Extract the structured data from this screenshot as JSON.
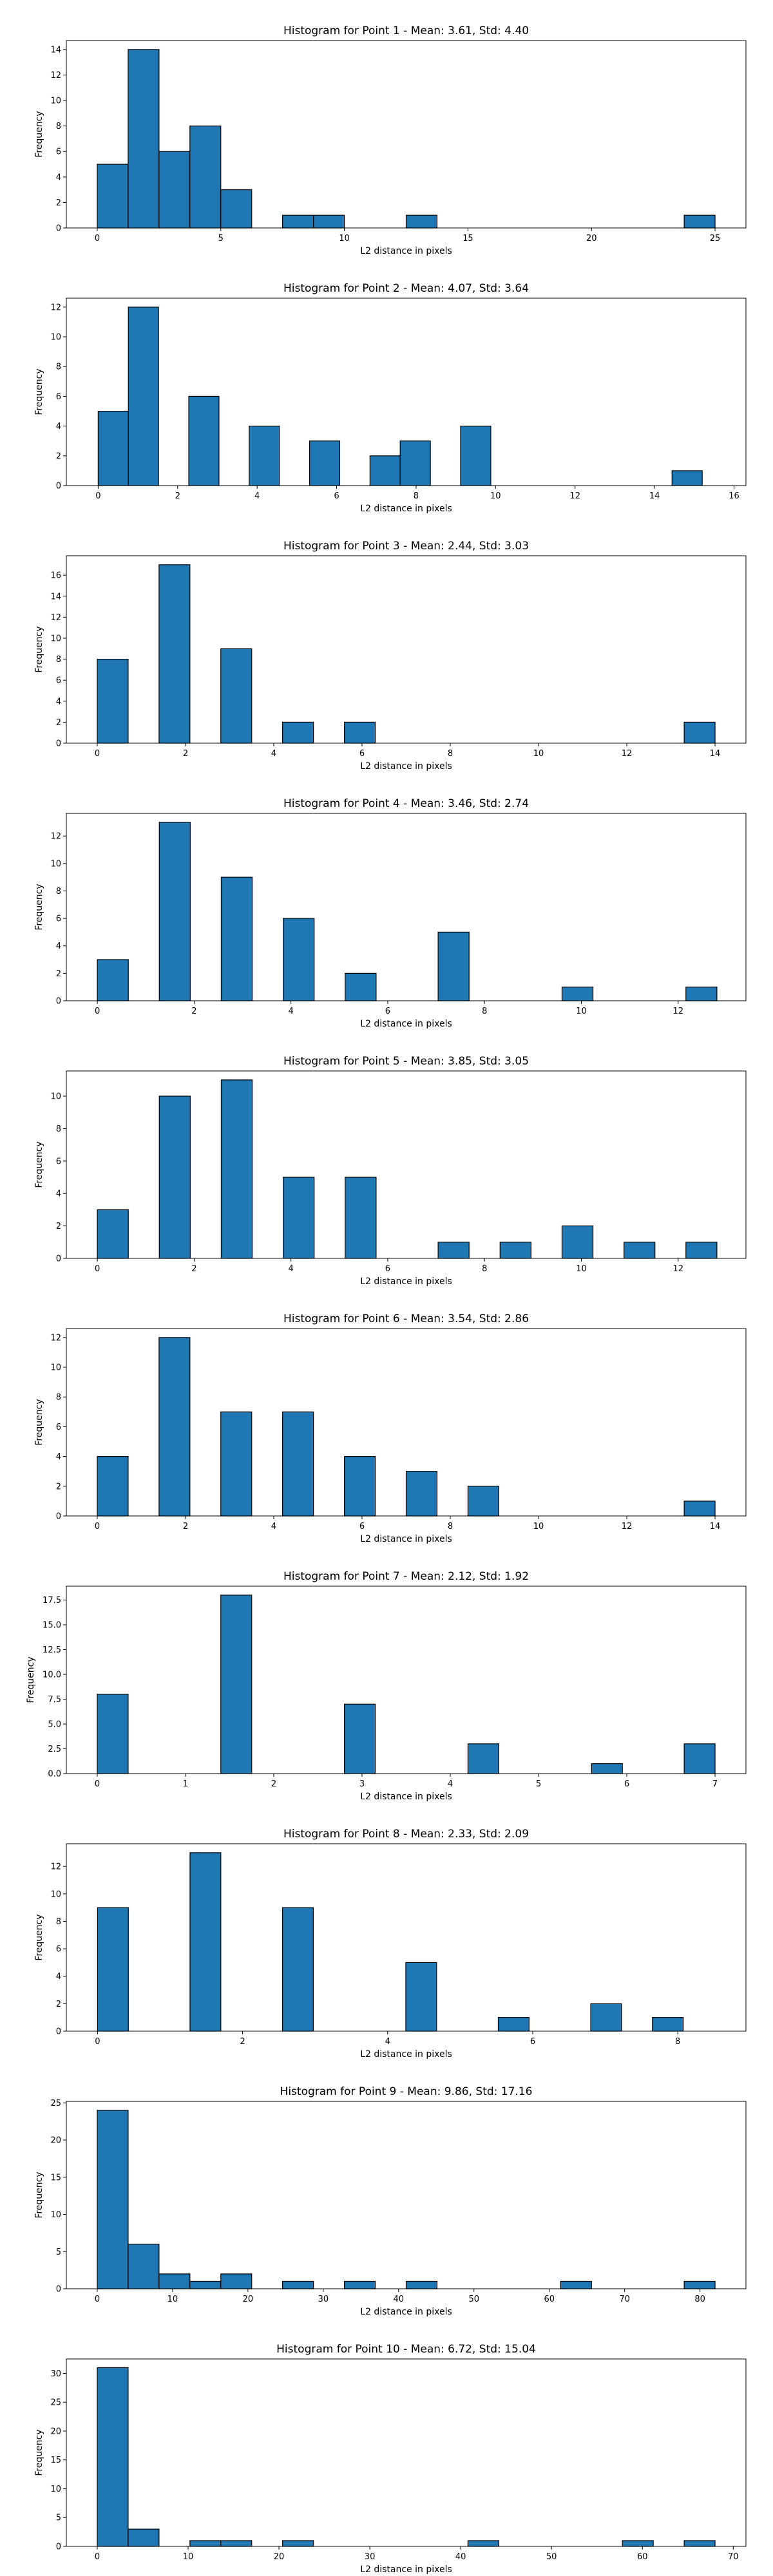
{
  "style": {
    "bar_color": "#1f77b4",
    "edge_color": "#000000"
  },
  "chart_data": [
    {
      "type": "bar",
      "title": "Histogram for Point 1 - Mean: 3.61, Std: 4.40",
      "xlabel": "L2 distance in pixels",
      "ylabel": "Frequency",
      "xlim": [
        -1.25,
        26.25
      ],
      "ylim": [
        0,
        14.7
      ],
      "xticks": [
        0,
        5,
        10,
        15,
        20,
        25
      ],
      "yticks": [
        0,
        2,
        4,
        6,
        8,
        10,
        12,
        14
      ],
      "bars": [
        {
          "x0": 0.0,
          "x1": 1.25,
          "value": 5
        },
        {
          "x0": 1.25,
          "x1": 2.5,
          "value": 14
        },
        {
          "x0": 2.5,
          "x1": 3.75,
          "value": 6
        },
        {
          "x0": 3.75,
          "x1": 5.0,
          "value": 8
        },
        {
          "x0": 5.0,
          "x1": 6.25,
          "value": 3
        },
        {
          "x0": 7.5,
          "x1": 8.75,
          "value": 1
        },
        {
          "x0": 8.75,
          "x1": 10.0,
          "value": 1
        },
        {
          "x0": 12.5,
          "x1": 13.75,
          "value": 1
        },
        {
          "x0": 23.75,
          "x1": 25.0,
          "value": 1
        }
      ]
    },
    {
      "type": "bar",
      "title": "Histogram for Point 2 - Mean: 4.07, Std: 3.64",
      "xlabel": "L2 distance in pixels",
      "ylabel": "Frequency",
      "xlim": [
        -0.8,
        16.3
      ],
      "ylim": [
        0,
        12.6
      ],
      "xticks": [
        0,
        2,
        4,
        6,
        8,
        10,
        12,
        14,
        16
      ],
      "yticks": [
        0,
        2,
        4,
        6,
        8,
        10,
        12
      ],
      "bars": [
        {
          "x0": 0.0,
          "x1": 0.76,
          "value": 5
        },
        {
          "x0": 0.76,
          "x1": 1.52,
          "value": 12
        },
        {
          "x0": 2.28,
          "x1": 3.04,
          "value": 6
        },
        {
          "x0": 3.8,
          "x1": 4.56,
          "value": 4
        },
        {
          "x0": 5.32,
          "x1": 6.08,
          "value": 3
        },
        {
          "x0": 6.84,
          "x1": 7.6,
          "value": 2
        },
        {
          "x0": 7.6,
          "x1": 8.36,
          "value": 3
        },
        {
          "x0": 9.12,
          "x1": 9.88,
          "value": 4
        },
        {
          "x0": 14.44,
          "x1": 15.2,
          "value": 1
        }
      ]
    },
    {
      "type": "bar",
      "title": "Histogram for Point 3 - Mean: 2.44, Std: 3.03",
      "xlabel": "L2 distance in pixels",
      "ylabel": "Frequency",
      "xlim": [
        -0.7,
        14.7
      ],
      "ylim": [
        0,
        17.85
      ],
      "xticks": [
        0,
        2,
        4,
        6,
        8,
        10,
        12,
        14
      ],
      "yticks": [
        0,
        2,
        4,
        6,
        8,
        10,
        12,
        14,
        16
      ],
      "bars": [
        {
          "x0": 0.0,
          "x1": 0.7,
          "value": 8
        },
        {
          "x0": 1.4,
          "x1": 2.1,
          "value": 17
        },
        {
          "x0": 2.8,
          "x1": 3.5,
          "value": 9
        },
        {
          "x0": 4.2,
          "x1": 4.9,
          "value": 2
        },
        {
          "x0": 5.6,
          "x1": 6.3,
          "value": 2
        },
        {
          "x0": 13.3,
          "x1": 14.0,
          "value": 2
        }
      ]
    },
    {
      "type": "bar",
      "title": "Histogram for Point 4 - Mean: 3.46, Std: 2.74",
      "xlabel": "L2 distance in pixels",
      "ylabel": "Frequency",
      "xlim": [
        -0.64,
        13.4
      ],
      "ylim": [
        0,
        13.65
      ],
      "xticks": [
        0,
        2,
        4,
        6,
        8,
        10,
        12
      ],
      "yticks": [
        0,
        2,
        4,
        6,
        8,
        10,
        12
      ],
      "bars": [
        {
          "x0": 0.0,
          "x1": 0.64,
          "value": 3
        },
        {
          "x0": 1.28,
          "x1": 1.92,
          "value": 13
        },
        {
          "x0": 2.56,
          "x1": 3.2,
          "value": 9
        },
        {
          "x0": 3.84,
          "x1": 4.48,
          "value": 6
        },
        {
          "x0": 5.12,
          "x1": 5.76,
          "value": 2
        },
        {
          "x0": 7.04,
          "x1": 7.68,
          "value": 5
        },
        {
          "x0": 9.6,
          "x1": 10.24,
          "value": 1
        },
        {
          "x0": 12.16,
          "x1": 12.8,
          "value": 1
        }
      ]
    },
    {
      "type": "bar",
      "title": "Histogram for Point 5 - Mean: 3.85, Std: 3.05",
      "xlabel": "L2 distance in pixels",
      "ylabel": "Frequency",
      "xlim": [
        -0.64,
        13.4
      ],
      "ylim": [
        0,
        11.55
      ],
      "xticks": [
        0,
        2,
        4,
        6,
        8,
        10,
        12
      ],
      "yticks": [
        0,
        2,
        4,
        6,
        8,
        10
      ],
      "bars": [
        {
          "x0": 0.0,
          "x1": 0.64,
          "value": 3
        },
        {
          "x0": 1.28,
          "x1": 1.92,
          "value": 10
        },
        {
          "x0": 2.56,
          "x1": 3.2,
          "value": 11
        },
        {
          "x0": 3.84,
          "x1": 4.48,
          "value": 5
        },
        {
          "x0": 5.12,
          "x1": 5.76,
          "value": 5
        },
        {
          "x0": 7.04,
          "x1": 7.68,
          "value": 1
        },
        {
          "x0": 8.32,
          "x1": 8.96,
          "value": 1
        },
        {
          "x0": 9.6,
          "x1": 10.24,
          "value": 2
        },
        {
          "x0": 10.88,
          "x1": 11.52,
          "value": 1
        },
        {
          "x0": 12.16,
          "x1": 12.8,
          "value": 1
        }
      ]
    },
    {
      "type": "bar",
      "title": "Histogram for Point 6 - Mean: 3.54, Std: 2.86",
      "xlabel": "L2 distance in pixels",
      "ylabel": "Frequency",
      "xlim": [
        -0.7,
        14.7
      ],
      "ylim": [
        0,
        12.6
      ],
      "xticks": [
        0,
        2,
        4,
        6,
        8,
        10,
        12,
        14
      ],
      "yticks": [
        0,
        2,
        4,
        6,
        8,
        10,
        12
      ],
      "bars": [
        {
          "x0": 0.0,
          "x1": 0.7,
          "value": 4
        },
        {
          "x0": 1.4,
          "x1": 2.1,
          "value": 12
        },
        {
          "x0": 2.8,
          "x1": 3.5,
          "value": 7
        },
        {
          "x0": 4.2,
          "x1": 4.9,
          "value": 7
        },
        {
          "x0": 5.6,
          "x1": 6.3,
          "value": 4
        },
        {
          "x0": 7.0,
          "x1": 7.7,
          "value": 3
        },
        {
          "x0": 8.4,
          "x1": 9.1,
          "value": 2
        },
        {
          "x0": 13.3,
          "x1": 14.0,
          "value": 1
        }
      ]
    },
    {
      "type": "bar",
      "title": "Histogram for Point 7 - Mean: 2.12, Std: 1.92",
      "xlabel": "L2 distance in pixels",
      "ylabel": "Frequency",
      "xlim": [
        -0.35,
        7.35
      ],
      "ylim": [
        0,
        18.9
      ],
      "xticks": [
        0,
        1,
        2,
        3,
        4,
        5,
        6,
        7
      ],
      "ytick_labels": [
        "0.0",
        "2.5",
        "5.0",
        "7.5",
        "10.0",
        "12.5",
        "15.0",
        "17.5"
      ],
      "yticks": [
        0,
        2.5,
        5,
        7.5,
        10,
        12.5,
        15,
        17.5
      ],
      "bars": [
        {
          "x0": 0.0,
          "x1": 0.35,
          "value": 8
        },
        {
          "x0": 1.4,
          "x1": 1.75,
          "value": 18
        },
        {
          "x0": 2.8,
          "x1": 3.15,
          "value": 7
        },
        {
          "x0": 4.2,
          "x1": 4.55,
          "value": 3
        },
        {
          "x0": 5.6,
          "x1": 5.95,
          "value": 1
        },
        {
          "x0": 6.65,
          "x1": 7.0,
          "value": 3
        }
      ]
    },
    {
      "type": "bar",
      "title": "Histogram for Point 8 - Mean: 2.33, Std: 2.09",
      "xlabel": "L2 distance in pixels",
      "ylabel": "Frequency",
      "xlim": [
        -0.43,
        8.94
      ],
      "ylim": [
        0,
        13.65
      ],
      "xticks": [
        0,
        2,
        4,
        6,
        8
      ],
      "yticks": [
        0,
        2,
        4,
        6,
        8,
        10,
        12
      ],
      "bars": [
        {
          "x0": 0.0,
          "x1": 0.425,
          "value": 9
        },
        {
          "x0": 1.275,
          "x1": 1.7,
          "value": 13
        },
        {
          "x0": 2.55,
          "x1": 2.975,
          "value": 9
        },
        {
          "x0": 4.25,
          "x1": 4.675,
          "value": 5
        },
        {
          "x0": 5.525,
          "x1": 5.95,
          "value": 1
        },
        {
          "x0": 6.8,
          "x1": 7.225,
          "value": 2
        },
        {
          "x0": 7.65,
          "x1": 8.075,
          "value": 1
        }
      ]
    },
    {
      "type": "bar",
      "title": "Histogram for Point 9 - Mean: 9.86, Std: 17.16",
      "xlabel": "L2 distance in pixels",
      "ylabel": "Frequency",
      "xlim": [
        -4.1,
        86.1
      ],
      "ylim": [
        0,
        25.2
      ],
      "xticks": [
        0,
        10,
        20,
        30,
        40,
        50,
        60,
        70,
        80
      ],
      "yticks": [
        0,
        5,
        10,
        15,
        20,
        25
      ],
      "bars": [
        {
          "x0": 0.0,
          "x1": 4.1,
          "value": 24
        },
        {
          "x0": 4.1,
          "x1": 8.2,
          "value": 6
        },
        {
          "x0": 8.2,
          "x1": 12.3,
          "value": 2
        },
        {
          "x0": 12.3,
          "x1": 16.4,
          "value": 1
        },
        {
          "x0": 16.4,
          "x1": 20.5,
          "value": 2
        },
        {
          "x0": 24.6,
          "x1": 28.7,
          "value": 1
        },
        {
          "x0": 32.8,
          "x1": 36.9,
          "value": 1
        },
        {
          "x0": 41.0,
          "x1": 45.1,
          "value": 1
        },
        {
          "x0": 61.5,
          "x1": 65.6,
          "value": 1
        },
        {
          "x0": 77.9,
          "x1": 82.0,
          "value": 1
        }
      ]
    },
    {
      "type": "bar",
      "title": "Histogram for Point 10 - Mean: 6.72, Std: 15.04",
      "xlabel": "L2 distance in pixels",
      "ylabel": "Frequency",
      "xlim": [
        -3.4,
        71.4
      ],
      "ylim": [
        0,
        32.5
      ],
      "xticks": [
        0,
        10,
        20,
        30,
        40,
        50,
        60,
        70
      ],
      "yticks": [
        0,
        5,
        10,
        15,
        20,
        25,
        30
      ],
      "bars": [
        {
          "x0": 0.0,
          "x1": 3.4,
          "value": 31
        },
        {
          "x0": 3.4,
          "x1": 6.8,
          "value": 3
        },
        {
          "x0": 10.2,
          "x1": 13.6,
          "value": 1
        },
        {
          "x0": 13.6,
          "x1": 17.0,
          "value": 1
        },
        {
          "x0": 20.4,
          "x1": 23.8,
          "value": 1
        },
        {
          "x0": 40.8,
          "x1": 44.2,
          "value": 1
        },
        {
          "x0": 57.8,
          "x1": 61.2,
          "value": 1
        },
        {
          "x0": 64.6,
          "x1": 68.0,
          "value": 1
        }
      ]
    }
  ]
}
